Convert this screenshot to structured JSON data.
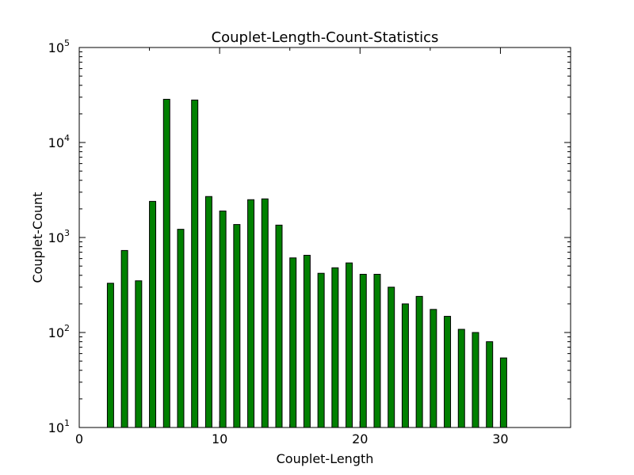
{
  "chart_data": {
    "type": "bar",
    "title": "Couplet-Length-Count-Statistics",
    "xlabel": "Couplet-Length",
    "ylabel": "Couplet-Count",
    "xlim": [
      0,
      35
    ],
    "ylim": [
      10,
      100000
    ],
    "y_scale": "log",
    "grid": false,
    "x_ticks": [
      0,
      10,
      20,
      30
    ],
    "y_ticks": [
      {
        "value": 10,
        "base": "10",
        "exp": "1"
      },
      {
        "value": 100,
        "base": "10",
        "exp": "2"
      },
      {
        "value": 1000,
        "base": "10",
        "exp": "3"
      },
      {
        "value": 10000,
        "base": "10",
        "exp": "4"
      },
      {
        "value": 100000,
        "base": "10",
        "exp": "5"
      }
    ],
    "bar_color": "#008000",
    "bar_edge_color": "#000000",
    "x": [
      2,
      3,
      4,
      5,
      6,
      7,
      8,
      9,
      10,
      11,
      12,
      13,
      14,
      15,
      16,
      17,
      18,
      19,
      20,
      21,
      22,
      23,
      24,
      25,
      26,
      27,
      28,
      29,
      30
    ],
    "values": [
      330,
      730,
      350,
      2400,
      28500,
      1220,
      28000,
      2700,
      1900,
      1370,
      2500,
      2550,
      1350,
      610,
      650,
      420,
      480,
      540,
      410,
      410,
      300,
      200,
      240,
      175,
      148,
      108,
      100,
      80,
      54
    ]
  }
}
